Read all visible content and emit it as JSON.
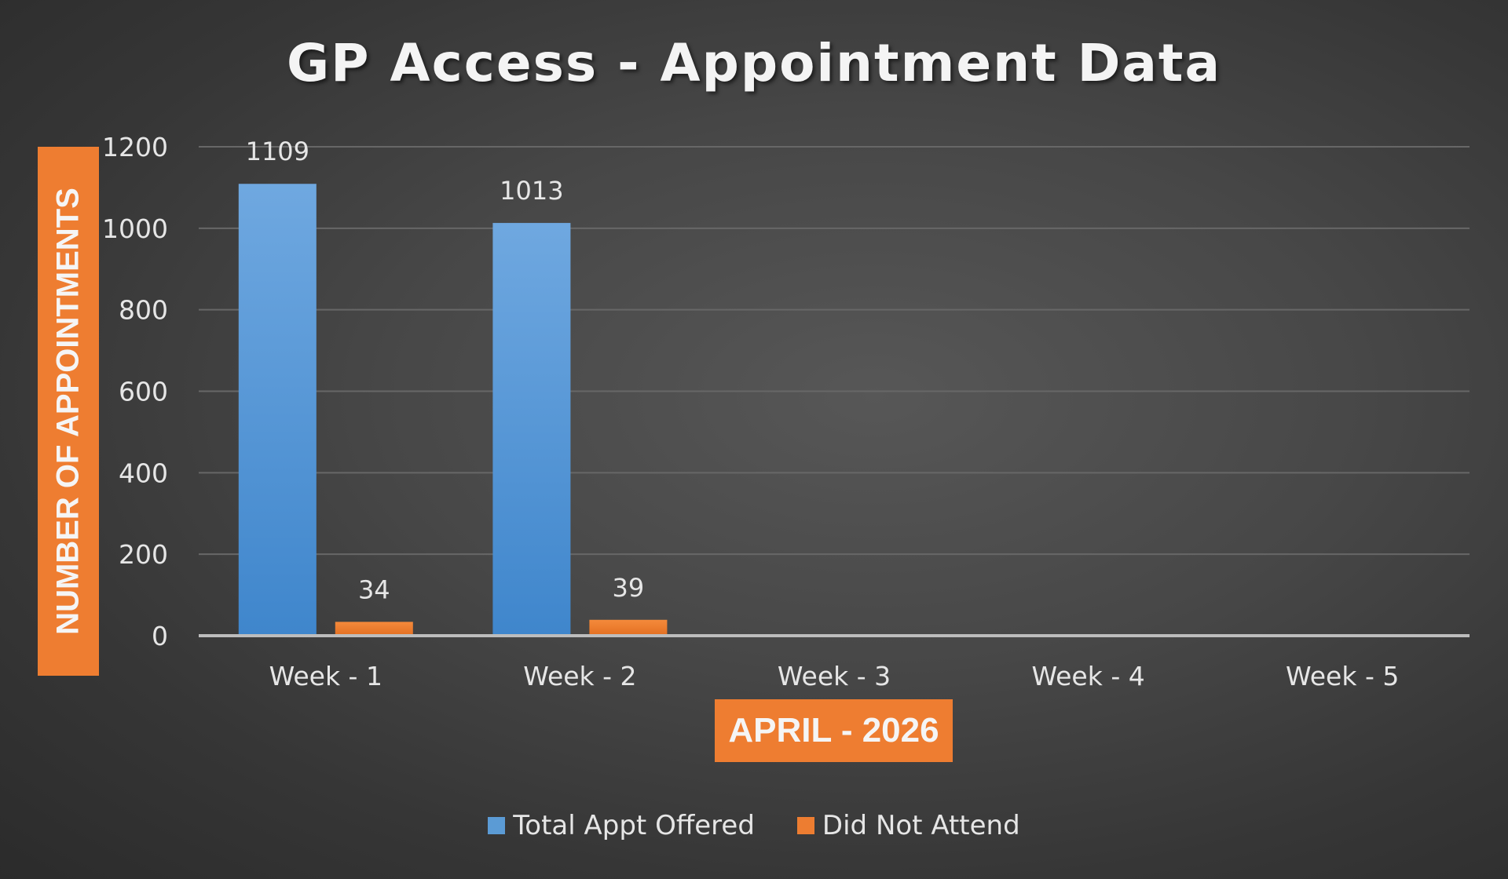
{
  "chart_data": {
    "type": "bar",
    "title": "GP Access - Appointment Data",
    "xlabel": "APRIL - 2026",
    "ylabel": "NUMBER OF APPOINTMENTS",
    "categories": [
      "Week - 1",
      "Week - 2",
      "Week - 3",
      "Week - 4",
      "Week - 5"
    ],
    "series": [
      {
        "name": "Total Appt Offered",
        "color": "#5b9bd5",
        "values": [
          1109,
          1013,
          null,
          null,
          null
        ],
        "labels": [
          "1109",
          "1013",
          "",
          "",
          ""
        ]
      },
      {
        "name": "Did Not Attend",
        "color": "#ed7d31",
        "values": [
          34,
          39,
          null,
          null,
          null
        ],
        "labels": [
          "34",
          "39",
          "",
          "",
          ""
        ]
      }
    ],
    "ylim": [
      0,
      1200
    ],
    "yticks": [
      0,
      200,
      400,
      600,
      800,
      1000,
      1200
    ],
    "grid": true,
    "legend_position": "bottom"
  }
}
